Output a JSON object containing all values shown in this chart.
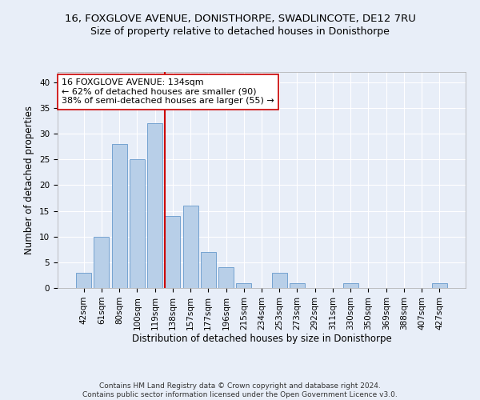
{
  "title": "16, FOXGLOVE AVENUE, DONISTHORPE, SWADLINCOTE, DE12 7RU",
  "subtitle": "Size of property relative to detached houses in Donisthorpe",
  "xlabel": "Distribution of detached houses by size in Donisthorpe",
  "ylabel": "Number of detached properties",
  "footer_line1": "Contains HM Land Registry data © Crown copyright and database right 2024.",
  "footer_line2": "Contains public sector information licensed under the Open Government Licence v3.0.",
  "bar_labels": [
    "42sqm",
    "61sqm",
    "80sqm",
    "100sqm",
    "119sqm",
    "138sqm",
    "157sqm",
    "177sqm",
    "196sqm",
    "215sqm",
    "234sqm",
    "253sqm",
    "273sqm",
    "292sqm",
    "311sqm",
    "330sqm",
    "350sqm",
    "369sqm",
    "388sqm",
    "407sqm",
    "427sqm"
  ],
  "bar_values": [
    3,
    10,
    28,
    25,
    32,
    14,
    16,
    7,
    4,
    1,
    0,
    3,
    1,
    0,
    0,
    1,
    0,
    0,
    0,
    0,
    1
  ],
  "bar_color": "#b8cfe8",
  "bar_edgecolor": "#6699cc",
  "vline_x": 4.575,
  "vline_color": "#cc0000",
  "annotation_text": "16 FOXGLOVE AVENUE: 134sqm\n← 62% of detached houses are smaller (90)\n38% of semi-detached houses are larger (55) →",
  "annotation_box_edgecolor": "#cc0000",
  "annotation_box_facecolor": "#ffffff",
  "ylim": [
    0,
    42
  ],
  "yticks": [
    0,
    5,
    10,
    15,
    20,
    25,
    30,
    35,
    40
  ],
  "background_color": "#e8eef8",
  "axes_facecolor": "#e8eef8",
  "grid_color": "#ffffff",
  "title_fontsize": 9.5,
  "subtitle_fontsize": 9,
  "xlabel_fontsize": 8.5,
  "ylabel_fontsize": 8.5,
  "tick_fontsize": 7.5,
  "footer_fontsize": 6.5,
  "annotation_fontsize": 8
}
